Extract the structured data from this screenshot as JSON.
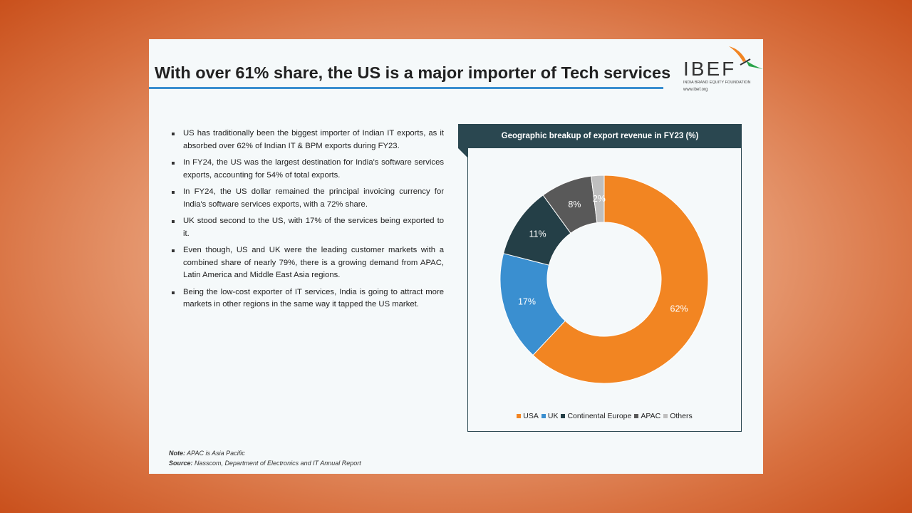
{
  "header": {
    "title": "With over 61% share, the US is a major importer of Tech services"
  },
  "logo": {
    "name": "IBEF",
    "subtitle": "INDIA BRAND EQUITY FOUNDATION",
    "url": "www.ibef.org"
  },
  "bullets": [
    "US has traditionally been the biggest importer of Indian IT exports, as it absorbed over 62% of Indian IT & BPM exports during FY23.",
    "In FY24, the US was the largest destination for India's software services exports, accounting for 54% of total exports.",
    "In FY24, the US dollar remained the principal invoicing currency for India's software services exports, with a 72% share.",
    "UK stood second to the US, with 17% of the services being exported to it.",
    "Even though, US and UK were the leading customer markets with a combined share of nearly 79%, there is a growing demand from APAC, Latin America and Middle East Asia regions.",
    "Being the low-cost exporter of IT services, India is going to attract more markets in other regions in the same way it tapped the US market."
  ],
  "footer": {
    "note_label": "Note:",
    "note": " APAC is Asia Pacific",
    "source_label": "Source:",
    "source": " Nasscom, Department of Electronics and IT Annual Report"
  },
  "chart_data": {
    "type": "pie",
    "donut": true,
    "title": "Geographic breakup of export revenue in FY23 (%)",
    "categories": [
      "USA",
      "UK",
      "Continental Europe",
      "APAC",
      "Others"
    ],
    "values": [
      62,
      17,
      11,
      8,
      2
    ],
    "labels": [
      "62%",
      "17%",
      "11%",
      "8%",
      "2%"
    ],
    "colors": [
      "#f28522",
      "#3a8fd0",
      "#243f47",
      "#595959",
      "#bfbfbf"
    ],
    "legend": "bottom"
  }
}
